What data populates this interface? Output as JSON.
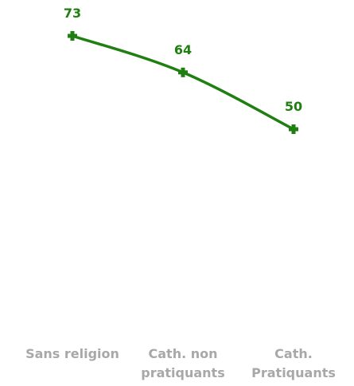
{
  "chart_data": {
    "type": "line",
    "categories": [
      "Sans religion",
      "Cath. non pratiquants",
      "Cath. Pratiquants"
    ],
    "category_lines": [
      [
        "Sans religion"
      ],
      [
        "Cath. non",
        "pratiquants"
      ],
      [
        "Cath.",
        "Pratiquants"
      ]
    ],
    "series": [
      {
        "values": [
          73,
          64,
          50
        ],
        "color": "#1f7f10"
      }
    ],
    "data_labels": [
      "73",
      "64",
      "50"
    ],
    "title": "",
    "xlabel": "",
    "ylabel": "",
    "ylim": [
      0,
      80
    ],
    "grid": false,
    "legend": "none",
    "colors": {
      "line": "#1f7f10",
      "category_text": "#a8a8a8",
      "background": "#ffffff"
    }
  }
}
